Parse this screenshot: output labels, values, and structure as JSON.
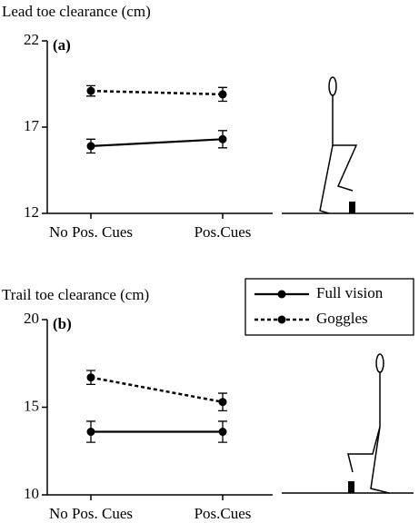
{
  "chart_data": [
    {
      "type": "line",
      "title": "Lead toe clearance (cm)",
      "panel_label": "(a)",
      "categories": [
        "No Pos. Cues",
        "Pos.Cues"
      ],
      "series": [
        {
          "color": "#000000",
          "dash": false,
          "values": [
            15.9,
            16.3
          ],
          "errors": [
            0.4,
            0.5
          ]
        },
        {
          "color": "#000000",
          "dash": true,
          "values": [
            19.1,
            18.9
          ],
          "errors": [
            0.3,
            0.4
          ]
        }
      ],
      "ylim": [
        12,
        22
      ],
      "yticks": [
        12,
        17,
        22
      ]
    },
    {
      "type": "line",
      "title": "Trail toe clearance (cm)",
      "panel_label": "(b)",
      "categories": [
        "No Pos. Cues",
        "Pos.Cues"
      ],
      "series": [
        {
          "name": "Full vision",
          "color": "#000000",
          "dash": false,
          "values": [
            13.6,
            13.6
          ],
          "errors": [
            0.6,
            0.6
          ]
        },
        {
          "name": "Goggles",
          "color": "#000000",
          "dash": true,
          "values": [
            16.7,
            15.3
          ],
          "errors": [
            0.4,
            0.5
          ]
        }
      ],
      "ylim": [
        10,
        20
      ],
      "yticks": [
        10,
        15,
        20
      ],
      "legend": "top-right"
    }
  ]
}
